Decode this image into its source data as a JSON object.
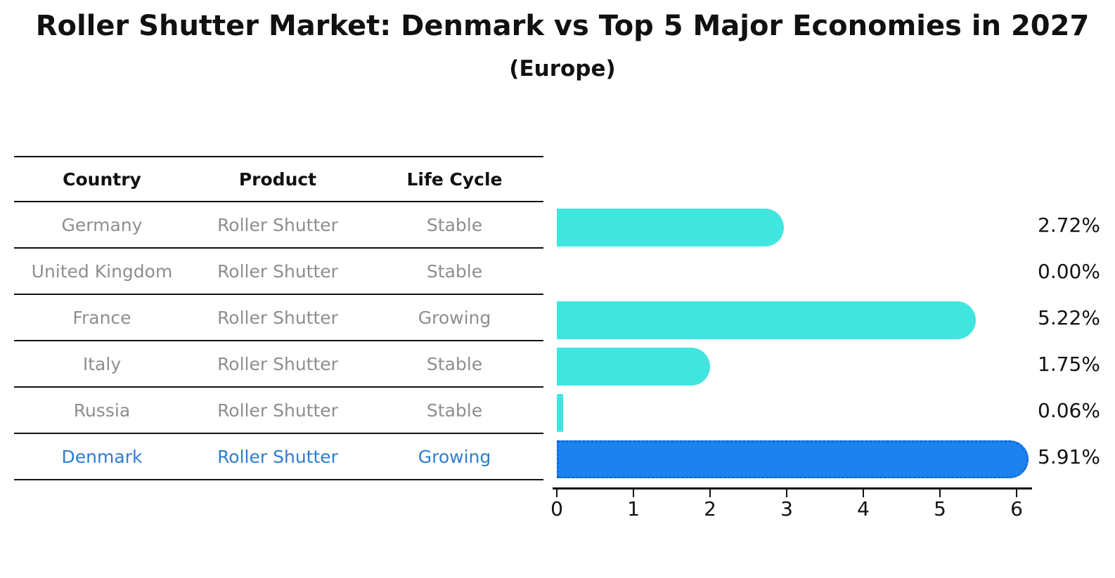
{
  "header": {
    "title": "Roller Shutter Market: Denmark vs Top 5 Major Economies in 2027",
    "subtitle": "(Europe)"
  },
  "table": {
    "columns": [
      "Country",
      "Product",
      "Life Cycle"
    ],
    "rows": [
      {
        "country": "Germany",
        "product": "Roller Shutter",
        "life_cycle": "Stable"
      },
      {
        "country": "United Kingdom",
        "product": "Roller Shutter",
        "life_cycle": "Stable"
      },
      {
        "country": "France",
        "product": "Roller Shutter",
        "life_cycle": "Growing"
      },
      {
        "country": "Italy",
        "product": "Roller Shutter",
        "life_cycle": "Stable"
      },
      {
        "country": "Russia",
        "product": "Roller Shutter",
        "life_cycle": "Stable"
      },
      {
        "country": "Denmark",
        "product": "Roller Shutter",
        "life_cycle": "Growing"
      }
    ]
  },
  "chart_data": {
    "type": "bar",
    "orientation": "horizontal",
    "title": "Roller Shutter Market: Denmark vs Top 5 Major Economies in 2027",
    "subtitle": "(Europe)",
    "categories": [
      "Germany",
      "United Kingdom",
      "France",
      "Italy",
      "Russia",
      "Denmark"
    ],
    "values": [
      2.72,
      0.0,
      5.22,
      1.75,
      0.06,
      5.91
    ],
    "value_labels": [
      "2.72%",
      "0.00%",
      "5.22%",
      "1.75%",
      "0.06%",
      "5.91%"
    ],
    "xlim": [
      0,
      6
    ],
    "xticks": [
      0,
      1,
      2,
      3,
      4,
      5,
      6
    ],
    "grid": false,
    "legend": "none",
    "bar_colors": [
      "#40E6DE",
      "#40E6DE",
      "#40E6DE",
      "#40E6DE",
      "#40E6DE",
      "#1B82EE"
    ],
    "highlight_index": 5,
    "highlight_border_color": "#0E6BD8",
    "highlight_text_color": "#2d7dd2"
  },
  "colors": {
    "bar_cyan": "#40E6DE",
    "bar_blue": "#1B82EE",
    "table_text_gray": "#8e8e8e",
    "text_black": "#111111",
    "denmark_blue_text": "#2d7dd2"
  }
}
